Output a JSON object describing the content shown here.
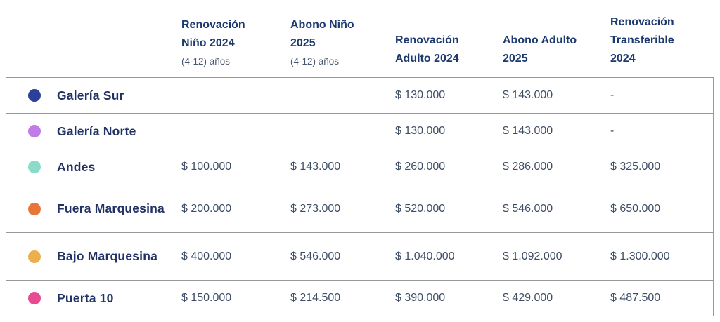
{
  "table": {
    "border_color": "#999999",
    "header_text_color": "#1c3a70",
    "subheader_text_color": "#47566e",
    "row_label_color": "#213266",
    "value_color": "#3f4e66",
    "columns": [
      {
        "label": "Renovación Niño 2024",
        "lines": [
          "Renovación",
          "Niño 2024"
        ],
        "sublabel": "(4-12) años"
      },
      {
        "label": "Abono Niño 2025",
        "lines": [
          "Abono Niño",
          "2025"
        ],
        "sublabel": "(4-12) años"
      },
      {
        "label": "Renovación Adulto 2024",
        "lines": [
          "Renovación",
          "Adulto 2024"
        ]
      },
      {
        "label": "Abono Adulto 2025",
        "lines": [
          "Abono Adulto",
          "2025"
        ]
      },
      {
        "label": "Renovación Transferible 2024",
        "lines": [
          "Renovación",
          "Transferible",
          "2024"
        ]
      }
    ],
    "rows": [
      {
        "name": "Galería Sur",
        "dot_color": "#2b4197",
        "values": [
          "",
          "",
          "$ 130.000",
          "$ 143.000",
          "-"
        ]
      },
      {
        "name": "Galería Norte",
        "dot_color": "#c07de8",
        "values": [
          "",
          "",
          "$ 130.000",
          "$ 143.000",
          "-"
        ]
      },
      {
        "name": "Andes",
        "dot_color": "#8adcc8",
        "values": [
          "$ 100.000",
          "$ 143.000",
          "$ 260.000",
          "$ 286.000",
          "$ 325.000"
        ]
      },
      {
        "name": "Fuera Marquesina",
        "dot_color": "#e87638",
        "values": [
          "$ 200.000",
          "$ 273.000",
          "$ 520.000",
          "$ 546.000",
          "$ 650.000"
        ]
      },
      {
        "name": "Bajo Marquesina",
        "dot_color": "#ecaf4e",
        "values": [
          "$ 400.000",
          "$ 546.000",
          "$ 1.040.000",
          "$ 1.092.000",
          "$ 1.300.000"
        ]
      },
      {
        "name": "Puerta 10",
        "dot_color": "#e84b92",
        "values": [
          "$ 150.000",
          "$ 214.500",
          "$ 390.000",
          "$ 429.000",
          "$ 487.500"
        ]
      }
    ]
  },
  "chart_data": {
    "type": "table",
    "title": "",
    "categories": [
      "Galería Sur",
      "Galería Norte",
      "Andes",
      "Fuera Marquesina",
      "Bajo Marquesina",
      "Puerta 10"
    ],
    "series": [
      {
        "name": "Renovación Niño 2024 (4-12) años",
        "values": [
          null,
          null,
          100000,
          200000,
          400000,
          150000
        ]
      },
      {
        "name": "Abono Niño 2025 (4-12) años",
        "values": [
          null,
          null,
          143000,
          273000,
          546000,
          214500
        ]
      },
      {
        "name": "Renovación Adulto 2024",
        "values": [
          130000,
          130000,
          260000,
          520000,
          1040000,
          390000
        ]
      },
      {
        "name": "Abono Adulto 2025",
        "values": [
          143000,
          143000,
          286000,
          546000,
          1092000,
          429000
        ]
      },
      {
        "name": "Renovación Transferible 2024",
        "values": [
          null,
          null,
          325000,
          650000,
          1300000,
          487500
        ]
      }
    ],
    "currency": "$"
  }
}
